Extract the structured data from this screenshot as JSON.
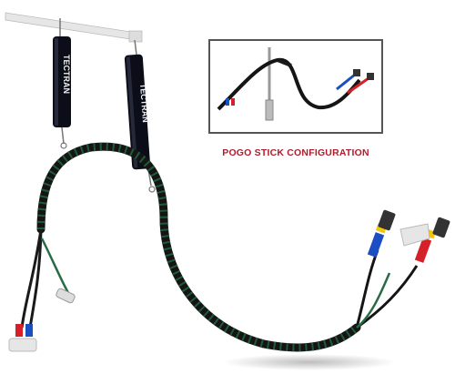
{
  "product": {
    "brand_label": "TECTRAN",
    "brand_mark": "T"
  },
  "inset": {
    "caption": "POGO STICK CONFIGURATION"
  },
  "colors": {
    "caption": "#b01c2e",
    "hose_black": "#151515",
    "wrap_green": "#1f5a3a",
    "air_blue": "#1a4fc4",
    "air_red": "#d5202a",
    "air_yellow": "#f1c40f",
    "inset_border": "#555555",
    "bracket": "#e6e6e6"
  }
}
